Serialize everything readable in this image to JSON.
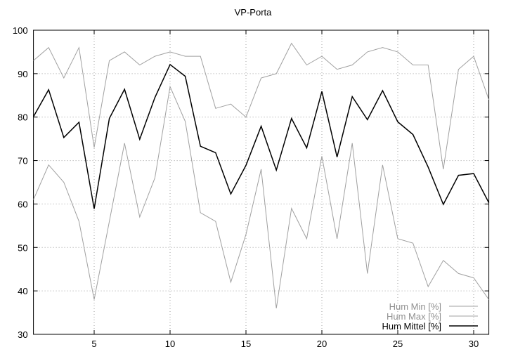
{
  "chart_data": {
    "type": "line",
    "title": "VP-Porta",
    "xlabel": "",
    "ylabel": "",
    "xlim": [
      1,
      31
    ],
    "ylim": [
      30,
      100
    ],
    "xticks": [
      5,
      10,
      15,
      20,
      25,
      30
    ],
    "yticks": [
      30,
      40,
      50,
      60,
      70,
      80,
      90,
      100
    ],
    "grid": true,
    "legend_position": "bottom-right",
    "x": [
      1,
      2,
      3,
      4,
      5,
      6,
      7,
      8,
      9,
      10,
      11,
      12,
      13,
      14,
      15,
      16,
      17,
      18,
      19,
      20,
      21,
      22,
      23,
      24,
      25,
      26,
      27,
      28,
      29,
      30,
      31
    ],
    "series": [
      {
        "name": "Hum Min [%]",
        "color": "#a0a0a0",
        "values": [
          61,
          69,
          65,
          56,
          38,
          56,
          74,
          57,
          66,
          87,
          79,
          58,
          56,
          42,
          53,
          68,
          36,
          59,
          52,
          71,
          52,
          74,
          44,
          69,
          52,
          51,
          41,
          47,
          44,
          43,
          38
        ]
      },
      {
        "name": "Hum Max [%]",
        "color": "#a0a0a0",
        "values": [
          93,
          96,
          89,
          96,
          73,
          93,
          95,
          92,
          94,
          95,
          94,
          94,
          82,
          83,
          80,
          89,
          90,
          97,
          92,
          94,
          91,
          92,
          95,
          96,
          95,
          92,
          92,
          68,
          91,
          94,
          84
        ]
      },
      {
        "name": "Hum Mittel [%]",
        "color": "#000000",
        "values": [
          80.1,
          86.3,
          75.3,
          78.8,
          58.9,
          79.7,
          86.4,
          74.9,
          84.5,
          92.1,
          89.4,
          73.3,
          71.8,
          62.3,
          68.9,
          77.9,
          67.8,
          79.7,
          72.9,
          85.9,
          70.8,
          84.7,
          79.4,
          86.1,
          78.9,
          76.0,
          68.5,
          59.9,
          66.6,
          67.0,
          60.3
        ]
      }
    ]
  }
}
